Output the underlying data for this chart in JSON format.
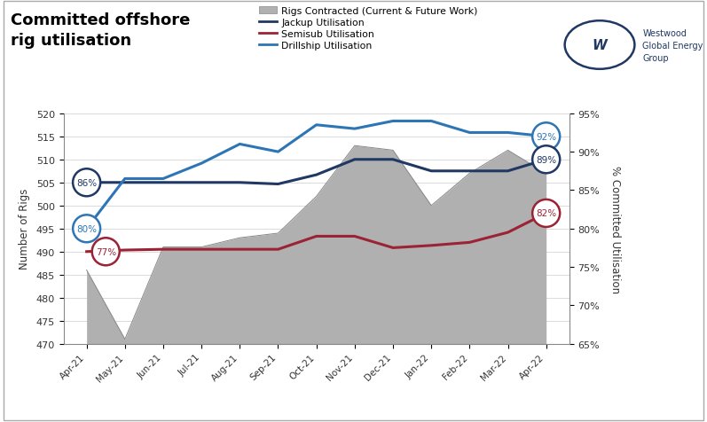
{
  "title": "Committed offshore\nrig utilisation",
  "ylabel_left": "Number of Rigs",
  "ylabel_right": "% Committed Utilisation",
  "x_labels": [
    "Apr-21",
    "May-21",
    "Jun-21",
    "Jul-21",
    "Aug-21",
    "Sep-21",
    "Oct-21",
    "Nov-21",
    "Dec-21",
    "Jan-22",
    "Feb-22",
    "Mar-22",
    "Apr-22"
  ],
  "rigs_contracted": [
    486,
    471,
    491,
    491,
    493,
    494,
    502,
    513,
    512,
    500,
    507,
    512,
    507
  ],
  "jackup_pct": [
    86.0,
    86.0,
    86.0,
    86.0,
    86.0,
    85.8,
    87.0,
    89.0,
    89.0,
    87.5,
    87.5,
    87.5,
    89.0
  ],
  "semisub_pct": [
    77.0,
    77.2,
    77.3,
    77.3,
    77.3,
    77.3,
    79.0,
    79.0,
    77.5,
    77.8,
    78.2,
    79.5,
    82.0
  ],
  "drillship_pct": [
    80.0,
    86.5,
    86.5,
    88.5,
    91.0,
    90.0,
    93.5,
    93.0,
    94.0,
    94.0,
    92.5,
    92.5,
    92.0
  ],
  "ylim_left": [
    470,
    520
  ],
  "ylim_right": [
    65,
    95
  ],
  "yticks_left": [
    470,
    475,
    480,
    485,
    490,
    495,
    500,
    505,
    510,
    515,
    520
  ],
  "yticks_right": [
    65,
    70,
    75,
    80,
    85,
    90,
    95
  ],
  "color_jackup": "#1f3864",
  "color_semisub": "#9b2335",
  "color_drillship": "#2e75b6",
  "color_area": "#b0b0b0",
  "bg_color": "#ffffff",
  "grid_color": "#d5d5d5",
  "legend_items": [
    "Rigs Contracted (Current & Future Work)",
    "Jackup Utilisation",
    "Semisub Utilisation",
    "Drillship Utilisation"
  ],
  "logo_text": "Westwood\nGlobal Energy\nGroup",
  "logo_color": "#1f3864",
  "border_color": "#aaaaaa",
  "annot_start": [
    {
      "label": "86%",
      "xi": 0,
      "pct": 86.0,
      "color": "#1f3864"
    },
    {
      "label": "80%",
      "xi": 0,
      "pct": 80.0,
      "color": "#2e75b6"
    },
    {
      "label": "77%",
      "xi": 0.6,
      "pct": 77.0,
      "color": "#9b2335"
    }
  ],
  "annot_end": [
    {
      "label": "92%",
      "xi": 12,
      "pct": 92.0,
      "color": "#2e75b6"
    },
    {
      "label": "89%",
      "xi": 12,
      "pct": 89.0,
      "color": "#1f3864"
    },
    {
      "label": "82%",
      "xi": 12,
      "pct": 82.0,
      "color": "#9b2335"
    }
  ]
}
